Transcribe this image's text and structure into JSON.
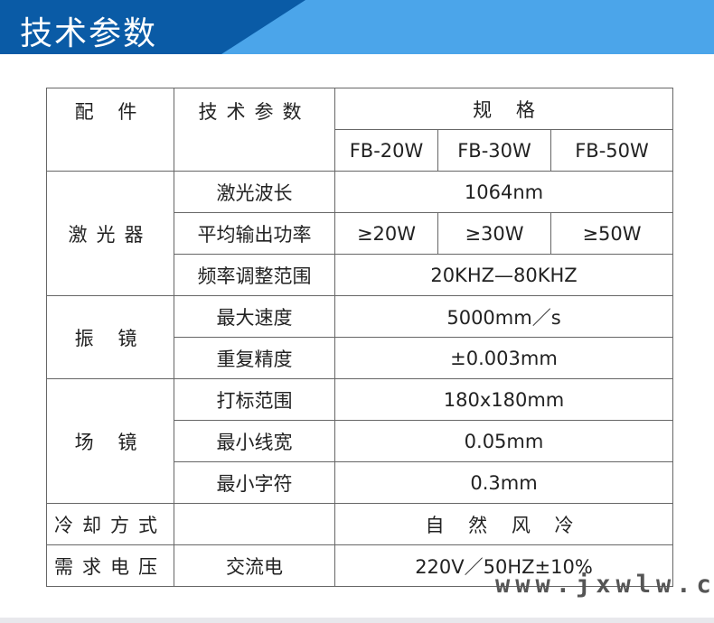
{
  "header": {
    "title": "技术参数"
  },
  "table": {
    "h_part": "配 件",
    "h_param": "技术参数",
    "h_spec": "规    格",
    "models": [
      "FB-20W",
      "FB-30W",
      "FB-50W"
    ],
    "laser": "激光器",
    "wavelength_l": "激光波长",
    "wavelength_v": "1064nm",
    "power_l": "平均输出功率",
    "power_v": [
      "≥20W",
      "≥30W",
      "≥50W"
    ],
    "freq_l": "频率调整范围",
    "freq_v": "20KHZ—80KHZ",
    "galvo": "振 镜",
    "speed_l": "最大速度",
    "speed_v": "5000mm／s",
    "repeat_l": "重复精度",
    "repeat_v": "±0.003mm",
    "lens": "场 镜",
    "area_l": "打标范围",
    "area_v": "180x180mm",
    "line_l": "最小线宽",
    "line_v": "0.05mm",
    "char_l": "最小字符",
    "char_v": "0.3mm",
    "cool_l": "冷却方式",
    "cool_v": "自 然 风 冷",
    "power_req_l": "需求电压",
    "power_req_p": "交流电",
    "power_req_v": "220V／50HZ±10%"
  },
  "watermark": "www.jxwlw.cn"
}
